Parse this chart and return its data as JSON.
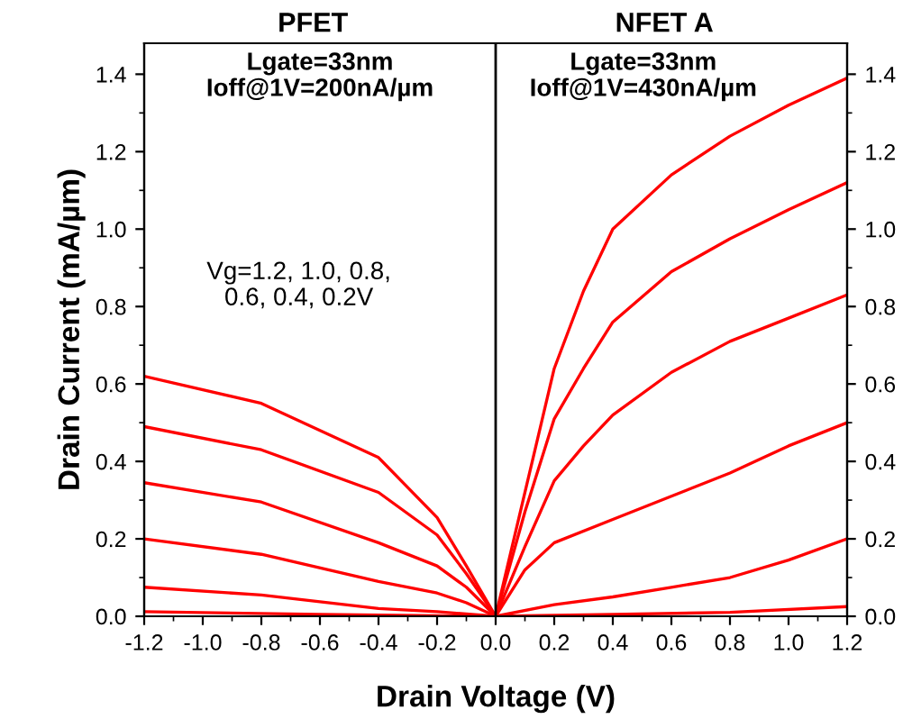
{
  "chart_data": {
    "type": "line",
    "xlabel": "Drain Voltage (V)",
    "ylabel": "Drain Current (mA/µm)",
    "annotations": [
      "PFET",
      "NFET A",
      "Lgate=33nm\nIoff@1V=200nA/µm",
      "Lgate=33nm\nIoff@1V=430nA/µm",
      "Vg=1.2, 1.0, 0.8,\n0.6, 0.4, 0.2V"
    ],
    "series": [
      {
        "color": "#ff0000",
        "x": [
          -1.2,
          -0.8,
          -0.4,
          -0.2,
          -0.1,
          0,
          0.1,
          0.2,
          0.3,
          0.4,
          0.6,
          0.8,
          1.0,
          1.2
        ],
        "values": [
          0.62,
          0.55,
          0.41,
          0.255,
          0.13,
          0,
          0.32,
          0.64,
          0.84,
          1.0,
          1.14,
          1.24,
          1.32,
          1.39
        ]
      },
      {
        "color": "#ff0000",
        "x": [
          -1.2,
          -0.8,
          -0.4,
          -0.2,
          -0.1,
          0,
          0.1,
          0.2,
          0.3,
          0.4,
          0.6,
          0.8,
          1.0,
          1.2
        ],
        "values": [
          0.49,
          0.43,
          0.32,
          0.21,
          0.11,
          0,
          0.27,
          0.51,
          0.64,
          0.76,
          0.89,
          0.975,
          1.05,
          1.12
        ]
      },
      {
        "color": "#ff0000",
        "x": [
          -1.2,
          -0.8,
          -0.4,
          -0.2,
          -0.1,
          0,
          0.1,
          0.2,
          0.3,
          0.4,
          0.6,
          0.8,
          1.0,
          1.2
        ],
        "values": [
          0.345,
          0.295,
          0.19,
          0.13,
          0.075,
          0,
          0.18,
          0.35,
          0.44,
          0.52,
          0.63,
          0.71,
          0.77,
          0.83
        ]
      },
      {
        "color": "#ff0000",
        "x": [
          -1.2,
          -0.8,
          -0.4,
          -0.2,
          -0.1,
          0,
          0.1,
          0.2,
          0.4,
          0.6,
          0.8,
          1.0,
          1.2
        ],
        "values": [
          0.2,
          0.16,
          0.09,
          0.06,
          0.035,
          0,
          0.12,
          0.19,
          0.25,
          0.31,
          0.37,
          0.44,
          0.5
        ]
      },
      {
        "color": "#ff0000",
        "x": [
          -1.2,
          -0.8,
          -0.4,
          -0.2,
          -0.1,
          0,
          0.2,
          0.4,
          0.6,
          0.8,
          1.0,
          1.2
        ],
        "values": [
          0.075,
          0.055,
          0.02,
          0.012,
          0.006,
          0,
          0.03,
          0.05,
          0.075,
          0.1,
          0.145,
          0.2
        ]
      },
      {
        "color": "#ff0000",
        "x": [
          -1.2,
          -0.6,
          0,
          0.4,
          0.8,
          1.2
        ],
        "values": [
          0.012,
          0.005,
          0,
          0.005,
          0.01,
          0.025
        ]
      }
    ],
    "ref_lines": [
      {
        "axis": "x",
        "value": 0,
        "color": "#000000"
      }
    ],
    "xlim": [
      -1.2,
      1.2
    ],
    "ylim": [
      0,
      1.48
    ],
    "y2lim": [
      0,
      1.48
    ],
    "xticks": [
      -1.2,
      {
        "value": -1.0,
        "label": "-1.0"
      },
      -0.8,
      -0.6,
      -0.4,
      -0.2,
      {
        "value": 0,
        "label": "0.0"
      },
      0.2,
      0.4,
      0.6,
      0.8,
      {
        "value": 1.0,
        "label": "1.0"
      },
      1.2
    ],
    "yticks": [
      {
        "value": 0,
        "label": "0.0"
      },
      0.2,
      0.4,
      0.6,
      0.8,
      {
        "value": 1.0,
        "label": "1.0"
      },
      1.2,
      1.4
    ],
    "y2ticks": [
      {
        "value": 0,
        "label": "0.0"
      },
      0.2,
      0.4,
      0.6,
      0.8,
      {
        "value": 1.0,
        "label": "1.0"
      },
      1.2,
      1.4
    ],
    "grid": false,
    "legend": false,
    "marker": "none",
    "line_style": "solid"
  }
}
